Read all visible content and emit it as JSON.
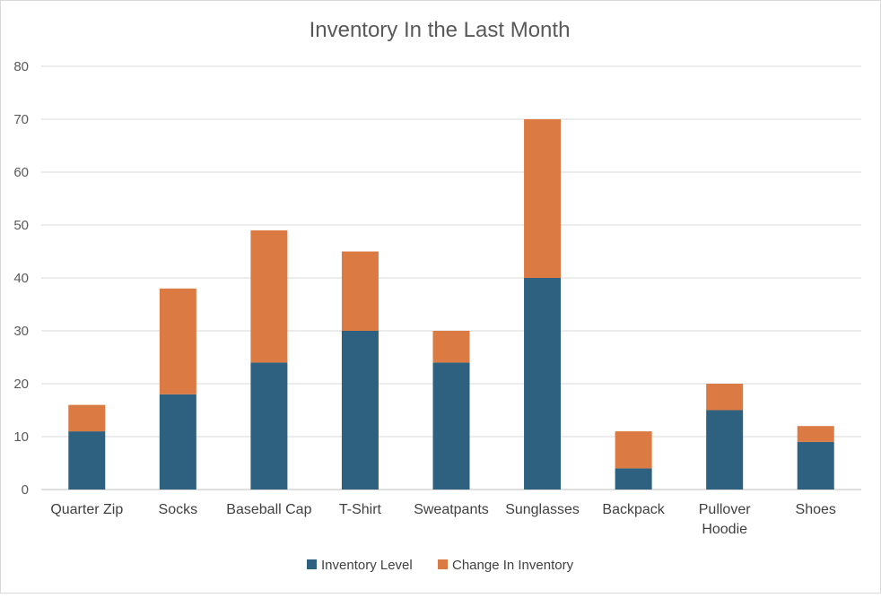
{
  "chart_data": {
    "type": "bar",
    "stacked": true,
    "title": "Inventory In the Last Month",
    "xlabel": "",
    "ylabel": "",
    "ylim": [
      0,
      80
    ],
    "yticks": [
      0,
      10,
      20,
      30,
      40,
      50,
      60,
      70,
      80
    ],
    "grid": true,
    "legend_position": "bottom",
    "categories": [
      [
        "Quarter Zip"
      ],
      [
        "Socks"
      ],
      [
        "Baseball Cap"
      ],
      [
        "T-Shirt"
      ],
      [
        "Sweatpants"
      ],
      [
        "Sunglasses"
      ],
      [
        "Backpack"
      ],
      [
        "Pullover",
        "Hoodie"
      ],
      [
        "Shoes"
      ]
    ],
    "series": [
      {
        "name": "Inventory Level",
        "color": "#2E6080",
        "values": [
          11,
          18,
          24,
          30,
          24,
          40,
          4,
          15,
          9
        ]
      },
      {
        "name": "Change In Inventory",
        "color": "#DC7A43",
        "values": [
          5,
          20,
          25,
          15,
          6,
          30,
          7,
          5,
          3
        ]
      }
    ]
  }
}
